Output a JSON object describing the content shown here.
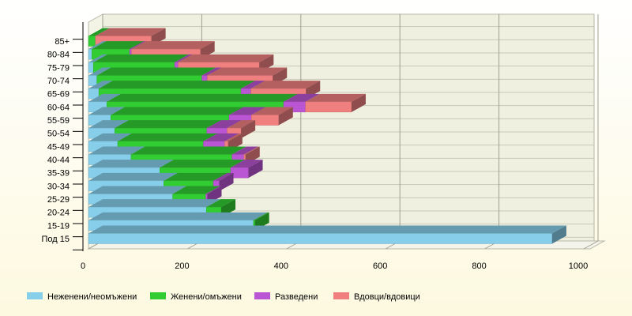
{
  "chart_data": {
    "type": "bar",
    "orientation": "horizontal",
    "stacked": true,
    "three_d": true,
    "categories": [
      "Под 15",
      "15-19",
      "20-24",
      "25-29",
      "30-34",
      "35-39",
      "40-44",
      "45-49",
      "50-54",
      "55-59",
      "60-64",
      "65-69",
      "70-74",
      "75-79",
      "80-84",
      "85+"
    ],
    "series": [
      {
        "name": "Неженени/неомъжени",
        "color": "#87CEEB",
        "values": [
          936,
          333,
          238,
          170,
          152,
          144,
          86,
          59,
          53,
          45,
          37,
          21,
          17,
          10,
          7,
          0
        ]
      },
      {
        "name": "Женени/омъжени",
        "color": "#32CD32",
        "values": [
          0,
          3,
          30,
          67,
          100,
          143,
          204,
          173,
          186,
          239,
          357,
          287,
          212,
          164,
          76,
          14
        ]
      },
      {
        "name": "Разведени",
        "color": "#BA55D3",
        "values": [
          0,
          0,
          0,
          3,
          12,
          36,
          24,
          43,
          41,
          45,
          44,
          20,
          11,
          7,
          4,
          0
        ]
      },
      {
        "name": "Вдовци/вдовици",
        "color": "#F08080",
        "values": [
          0,
          0,
          0,
          0,
          0,
          0,
          3,
          7,
          28,
          55,
          93,
          111,
          132,
          164,
          139,
          113
        ]
      }
    ],
    "xlim": [
      0,
      1000
    ],
    "xticks": [
      "0",
      "200",
      "400",
      "600",
      "800",
      "1000"
    ],
    "grid": true,
    "legend_position": "bottom",
    "title": "",
    "xlabel": "",
    "ylabel": ""
  }
}
